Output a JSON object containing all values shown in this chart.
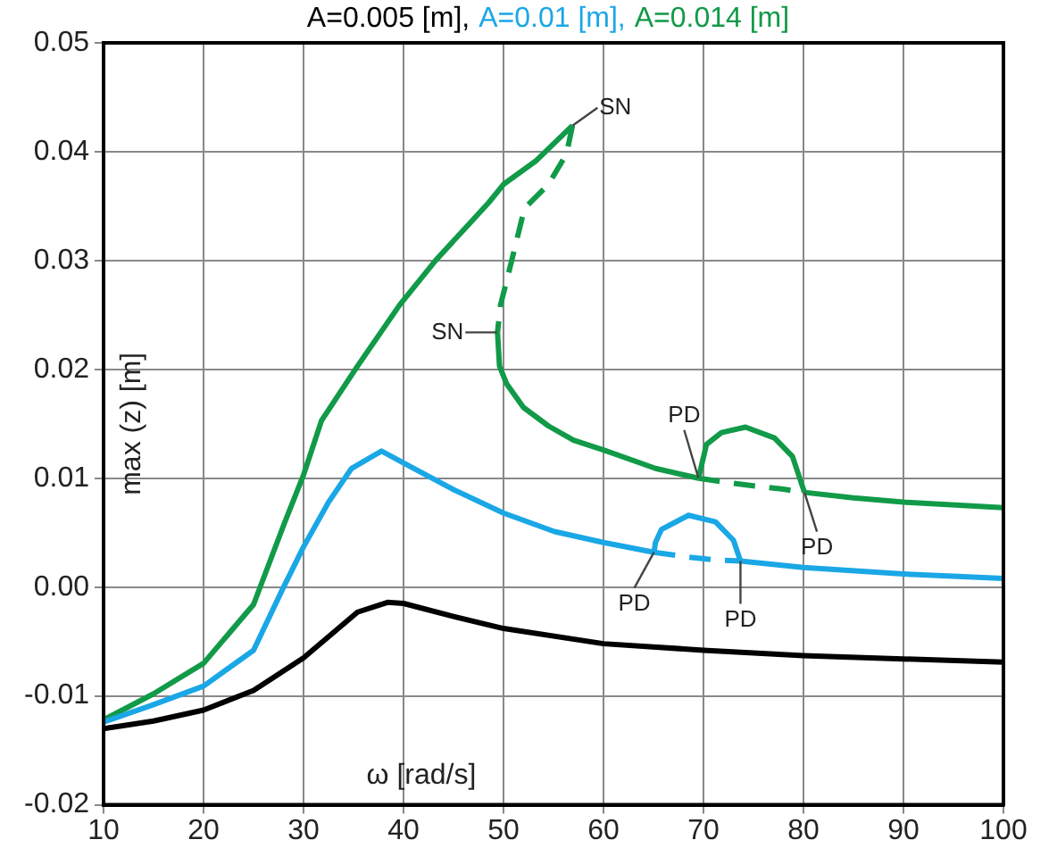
{
  "chart_data": {
    "type": "line",
    "xlabel": "ω [rad/s]",
    "ylabel": "max (z) [m]",
    "legend": "top",
    "grid": true,
    "xlim": [
      10,
      100
    ],
    "xticks": [
      10,
      20,
      30,
      40,
      50,
      60,
      70,
      80,
      90,
      100
    ],
    "ylim": [
      -0.02,
      0.05
    ],
    "yticks": [
      -0.02,
      -0.01,
      {
        "value": 0,
        "label": "0.00"
      },
      0.01,
      0.02,
      0.03,
      0.04,
      0.05
    ],
    "series": [
      {
        "name": "A=0.005 [m],",
        "color": "#000000",
        "x": [
          10,
          15,
          20,
          25,
          30,
          35.4,
          38.4,
          40,
          45,
          50,
          60,
          70,
          80,
          90,
          100
        ],
        "values": [
          -0.013,
          -0.0123,
          -0.0113,
          -0.0095,
          -0.0065,
          -0.0023,
          -0.0014,
          -0.0015,
          -0.0027,
          -0.0038,
          -0.0052,
          -0.0058,
          -0.0063,
          -0.0066,
          -0.0069
        ]
      },
      {
        "name": "A=0.01 [m],",
        "color": "#1aa7e6",
        "x": [
          10,
          15,
          20,
          25,
          27.9,
          30,
          32.5,
          34.8,
          37.8,
          40,
          44.9,
          50,
          55.1,
          60,
          65.05
        ],
        "values": [
          -0.0124,
          -0.0108,
          -0.0091,
          -0.0058,
          -0.0002,
          0.0037,
          0.0078,
          0.0109,
          0.0125,
          0.0114,
          0.009,
          0.0068,
          0.0051,
          0.0041,
          0.0032
        ]
      },
      {
        "color": "#1aa7e6",
        "line_style": "dashed",
        "x": [
          65.05,
          68.1,
          71.1,
          73.7
        ],
        "values": [
          0.0032,
          0.0028,
          0.0025,
          0.0024
        ]
      },
      {
        "color": "#1aa7e6",
        "x": [
          73.7,
          80,
          90,
          100
        ],
        "values": [
          0.0024,
          0.0018,
          0.0012,
          0.0008
        ]
      },
      {
        "color": "#1aa7e6",
        "x": [
          65.05,
          65.2,
          65.8,
          68.5,
          71.2,
          73,
          73.7
        ],
        "values": [
          0.0032,
          0.0041,
          0.0053,
          0.0066,
          0.006,
          0.0043,
          0.0024
        ]
      },
      {
        "name": "A=0.014 [m]",
        "color": "#119a48",
        "x": [
          10,
          15,
          20,
          25,
          28.1,
          30,
          31.8,
          35.4,
          39.6,
          43.2,
          48.5,
          50,
          53.3,
          56.9
        ],
        "values": [
          -0.0122,
          -0.0098,
          -0.007,
          -0.0016,
          0.0059,
          0.0103,
          0.0153,
          0.0203,
          0.0259,
          0.03,
          0.0353,
          0.037,
          0.0392,
          0.0424
        ]
      },
      {
        "color": "#119a48",
        "line_style": "dashed",
        "x": [
          56.9,
          56.3,
          54.5,
          52.1,
          50.9,
          49.7,
          49.4
        ],
        "values": [
          0.0424,
          0.0398,
          0.037,
          0.0348,
          0.0303,
          0.0259,
          0.0234
        ]
      },
      {
        "color": "#119a48",
        "x": [
          49.4,
          49.6,
          50.3,
          52,
          54.5,
          57,
          60,
          65.2,
          69.5
        ],
        "values": [
          0.0234,
          0.0203,
          0.0187,
          0.0165,
          0.0148,
          0.0135,
          0.0126,
          0.0109,
          0.01
        ]
      },
      {
        "color": "#119a48",
        "line_style": "dashed",
        "x": [
          69.5,
          72.5,
          75,
          78,
          80.1
        ],
        "values": [
          0.01,
          0.0096,
          0.0093,
          0.009,
          0.0087
        ]
      },
      {
        "color": "#119a48",
        "x": [
          69.5,
          70.3,
          71.8,
          74.2,
          77.1,
          78.9,
          80.1
        ],
        "values": [
          0.01,
          0.0131,
          0.0142,
          0.0147,
          0.0137,
          0.012,
          0.0087
        ]
      },
      {
        "color": "#119a48",
        "x": [
          80.1,
          85,
          90,
          100
        ],
        "values": [
          0.0087,
          0.0082,
          0.0078,
          0.0073
        ]
      }
    ],
    "annotations": [
      {
        "text": "SN",
        "x": 56.9,
        "y": 0.0424
      },
      {
        "text": "SN",
        "x": 49.4,
        "y": 0.0234
      },
      {
        "text": "PD",
        "x": 69.5,
        "y": 0.01
      },
      {
        "text": "PD",
        "x": 80.1,
        "y": 0.0087
      },
      {
        "text": "PD",
        "x": 65.05,
        "y": 0.0032
      },
      {
        "text": "PD",
        "x": 73.7,
        "y": 0.0024
      }
    ]
  }
}
